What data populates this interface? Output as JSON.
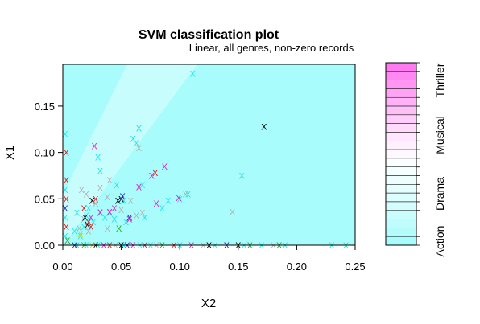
{
  "chart_data": {
    "type": "scatter",
    "title": "SVM classification plot",
    "subtitle": "Linear, all genres, non-zero records",
    "xlabel": "X2",
    "ylabel": "X1",
    "xlim": [
      0,
      0.25
    ],
    "ylim": [
      0,
      0.195
    ],
    "x_ticks": [
      "0.00",
      "0.05",
      "0.10",
      "0.15",
      "0.20",
      "0.25"
    ],
    "y_ticks": [
      "0.00",
      "0.05",
      "0.10",
      "0.15"
    ],
    "grid": false,
    "legend_position": "right",
    "legend_labels": [
      "Action",
      "Drama",
      "Musical",
      "Thriller"
    ],
    "background": {
      "base_color": "#a8fcfc",
      "band_color": "#c8fdfd",
      "band_polygon": [
        [
          0,
          0.055
        ],
        [
          0.055,
          0.195
        ],
        [
          0.115,
          0.195
        ],
        [
          0,
          0
        ]
      ]
    },
    "marker": "X",
    "colors": {
      "cyan": "#22e6e6",
      "magenta": "#e020c8",
      "gray": "#b0b0b0",
      "black": "#000000",
      "red": "#d02020",
      "green": "#20b020",
      "blue": "#2020d0",
      "yellow": "#d0d020"
    },
    "colorbar_colors": [
      "#a8fcfc",
      "#b4fcfc",
      "#c0fcfc",
      "#cafdfd",
      "#d4fdfd",
      "#ddfefe",
      "#e6fefe",
      "#eefefe",
      "#f5ffff",
      "#fbffff",
      "#fff8fe",
      "#fff0fd",
      "#ffe6fc",
      "#ffdafb",
      "#ffcdf9",
      "#ffc0f8",
      "#ffb2f6",
      "#ffa4f5",
      "#ff96f3",
      "#ff88f2",
      "#ff7af0"
    ],
    "series": [
      {
        "color": "cyan",
        "points": [
          [
            0.111,
            0.185
          ],
          [
            0.065,
            0.126
          ],
          [
            0.06,
            0.115
          ],
          [
            0.063,
            0.11
          ],
          [
            0.03,
            0.095
          ],
          [
            0.153,
            0.075
          ],
          [
            0.032,
            0.08
          ],
          [
            0.046,
            0.065
          ],
          [
            0.107,
            0.055
          ],
          [
            0.068,
            0.065
          ],
          [
            0.012,
            0.035
          ],
          [
            0.02,
            0.032
          ],
          [
            0.04,
            0.035
          ],
          [
            0.026,
            0.025
          ],
          [
            0.018,
            0.02
          ],
          [
            0.01,
            0.015
          ],
          [
            0.015,
            0.01
          ],
          [
            0.044,
            0.028
          ],
          [
            0.052,
            0.048
          ],
          [
            0.1,
            0.05
          ],
          [
            0.09,
            0.048
          ],
          [
            0.085,
            0.04
          ],
          [
            0.07,
            0.03
          ],
          [
            0.036,
            0.03
          ],
          [
            0.054,
            0.025
          ],
          [
            0.012,
            0.0
          ],
          [
            0.052,
            0.0
          ],
          [
            0.066,
            0.0
          ],
          [
            0.155,
            0.0
          ],
          [
            0.19,
            0.0
          ],
          [
            0.23,
            0.0
          ],
          [
            0.242,
            0.0
          ],
          [
            0.1,
            0.0
          ],
          [
            0.13,
            0.0
          ],
          [
            0.02,
            0.0
          ],
          [
            0.03,
            0.0
          ],
          [
            0.075,
            0.0
          ],
          [
            0.17,
            0.0
          ],
          [
            0.002,
            0.12
          ],
          [
            0.002,
            0.06
          ],
          [
            0.002,
            0.03
          ],
          [
            0.002,
            0.01
          ],
          [
            0.022,
            0.04
          ],
          [
            0.032,
            0.036
          ]
        ]
      },
      {
        "color": "magenta",
        "points": [
          [
            0.027,
            0.107
          ],
          [
            0.087,
            0.085
          ],
          [
            0.076,
            0.075
          ],
          [
            0.065,
            0.063
          ],
          [
            0.099,
            0.051
          ],
          [
            0.057,
            0.028
          ],
          [
            0.032,
            0.035
          ],
          [
            0.024,
            0.03
          ],
          [
            0.04,
            0.036
          ],
          [
            0.035,
            0.0
          ],
          [
            0.06,
            0.0
          ],
          [
            0.11,
            0.0
          ],
          [
            0.044,
            0.04
          ],
          [
            0.08,
            0.045
          ]
        ]
      },
      {
        "color": "gray",
        "points": [
          [
            0.065,
            0.105
          ],
          [
            0.04,
            0.07
          ],
          [
            0.032,
            0.062
          ],
          [
            0.016,
            0.06
          ],
          [
            0.02,
            0.055
          ],
          [
            0.038,
            0.052
          ],
          [
            0.058,
            0.048
          ],
          [
            0.105,
            0.055
          ],
          [
            0.145,
            0.036
          ],
          [
            0.063,
            0.032
          ],
          [
            0.068,
            0.035
          ],
          [
            0.018,
            0.028
          ],
          [
            0.014,
            0.018
          ],
          [
            0.022,
            0.015
          ],
          [
            0.038,
            0.018
          ],
          [
            0.045,
            0.0
          ],
          [
            0.08,
            0.0
          ],
          [
            0.12,
            0.0
          ],
          [
            0.18,
            0.0
          ],
          [
            0.028,
            0.045
          ],
          [
            0.05,
            0.038
          ]
        ]
      },
      {
        "color": "black",
        "points": [
          [
            0.172,
            0.128
          ],
          [
            0.047,
            0.048
          ],
          [
            0.05,
            0.05
          ],
          [
            0.025,
            0.048
          ],
          [
            0.019,
            0.03
          ],
          [
            0.021,
            0.022
          ],
          [
            0.028,
            0.0
          ],
          [
            0.05,
            0.0
          ],
          [
            0.125,
            0.0
          ],
          [
            0.15,
            0.0
          ]
        ]
      },
      {
        "color": "red",
        "points": [
          [
            0.079,
            0.078
          ],
          [
            0.028,
            0.05
          ],
          [
            0.018,
            0.04
          ],
          [
            0.022,
            0.025
          ],
          [
            0.024,
            0.02
          ],
          [
            0.04,
            0.0
          ],
          [
            0.07,
            0.0
          ],
          [
            0.095,
            0.0
          ],
          [
            0.003,
            0.1
          ],
          [
            0.003,
            0.07
          ],
          [
            0.003,
            0.02
          ],
          [
            0.003,
            0.05
          ]
        ]
      },
      {
        "color": "green",
        "points": [
          [
            0.048,
            0.018
          ],
          [
            0.018,
            0.0
          ],
          [
            0.085,
            0.0
          ],
          [
            0.16,
            0.0
          ],
          [
            0.185,
            0.0
          ],
          [
            0.004,
            0.005
          ]
        ]
      },
      {
        "color": "blue",
        "points": [
          [
            0.051,
            0.053
          ],
          [
            0.057,
            0.03
          ],
          [
            0.01,
            0.0
          ],
          [
            0.055,
            0.0
          ],
          [
            0.14,
            0.0
          ],
          [
            0.002,
            0.04
          ]
        ]
      },
      {
        "color": "yellow",
        "points": [
          [
            0.015,
            0.012
          ],
          [
            0.025,
            0.0
          ]
        ]
      }
    ]
  }
}
